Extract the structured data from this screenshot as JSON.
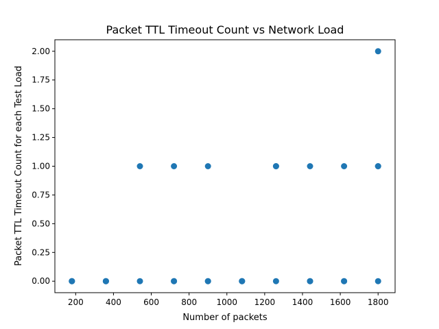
{
  "chart_data": {
    "type": "scatter",
    "title": "Packet TTL Timeout Count vs Network Load",
    "xlabel": "Number of packets",
    "ylabel": "Packet TTL Timeout Count for each Test Load",
    "xlim": [
      90,
      1890
    ],
    "ylim": [
      -0.1,
      2.1
    ],
    "xticks": [
      {
        "value": 200,
        "label": "200"
      },
      {
        "value": 400,
        "label": "400"
      },
      {
        "value": 600,
        "label": "600"
      },
      {
        "value": 800,
        "label": "800"
      },
      {
        "value": 1000,
        "label": "1000"
      },
      {
        "value": 1200,
        "label": "1200"
      },
      {
        "value": 1400,
        "label": "1400"
      },
      {
        "value": 1600,
        "label": "1600"
      },
      {
        "value": 1800,
        "label": "1800"
      }
    ],
    "yticks": [
      {
        "value": 0.0,
        "label": "0.00"
      },
      {
        "value": 0.25,
        "label": "0.25"
      },
      {
        "value": 0.5,
        "label": "0.50"
      },
      {
        "value": 0.75,
        "label": "0.75"
      },
      {
        "value": 1.0,
        "label": "1.00"
      },
      {
        "value": 1.25,
        "label": "1.25"
      },
      {
        "value": 1.5,
        "label": "1.50"
      },
      {
        "value": 1.75,
        "label": "1.75"
      },
      {
        "value": 2.0,
        "label": "2.00"
      }
    ],
    "grid": false,
    "color": "#1f77b4",
    "points": [
      {
        "x": 180,
        "y": 0
      },
      {
        "x": 180,
        "y": 0
      },
      {
        "x": 180,
        "y": 0
      },
      {
        "x": 360,
        "y": 0
      },
      {
        "x": 360,
        "y": 0
      },
      {
        "x": 360,
        "y": 0
      },
      {
        "x": 540,
        "y": 0
      },
      {
        "x": 540,
        "y": 1
      },
      {
        "x": 720,
        "y": 0
      },
      {
        "x": 720,
        "y": 0
      },
      {
        "x": 720,
        "y": 1
      },
      {
        "x": 900,
        "y": 0
      },
      {
        "x": 900,
        "y": 0
      },
      {
        "x": 900,
        "y": 1
      },
      {
        "x": 1080,
        "y": 0
      },
      {
        "x": 1080,
        "y": 0
      },
      {
        "x": 1080,
        "y": 0
      },
      {
        "x": 1260,
        "y": 0
      },
      {
        "x": 1260,
        "y": 1
      },
      {
        "x": 1260,
        "y": 1
      },
      {
        "x": 1440,
        "y": 0
      },
      {
        "x": 1440,
        "y": 0
      },
      {
        "x": 1440,
        "y": 1
      },
      {
        "x": 1620,
        "y": 0
      },
      {
        "x": 1620,
        "y": 0
      },
      {
        "x": 1620,
        "y": 1
      },
      {
        "x": 1800,
        "y": 0
      },
      {
        "x": 1800,
        "y": 1
      },
      {
        "x": 1800,
        "y": 1
      },
      {
        "x": 1800,
        "y": 2
      }
    ]
  }
}
